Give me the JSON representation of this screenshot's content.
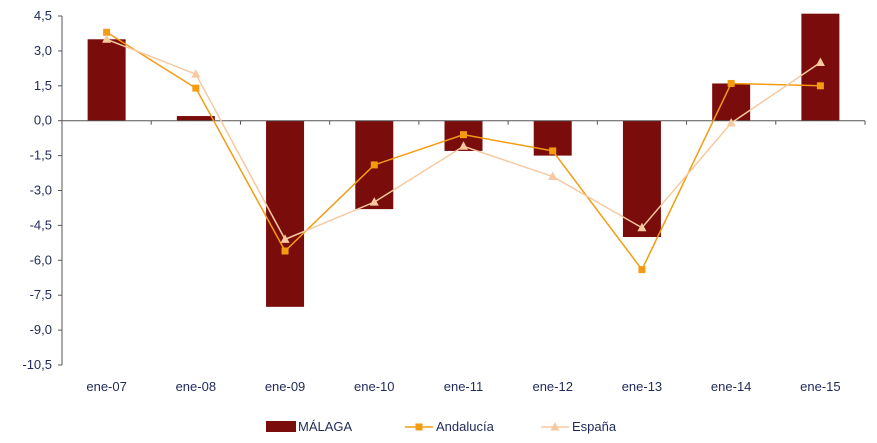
{
  "chart_data": {
    "type": "bar",
    "categories": [
      "ene-07",
      "ene-08",
      "ene-09",
      "ene-10",
      "ene-11",
      "ene-12",
      "ene-13",
      "ene-14",
      "ene-15"
    ],
    "yticks": [
      "4,5",
      "3,0",
      "1,5",
      "0,0",
      "-1,5",
      "-3,0",
      "-4,5",
      "-6,0",
      "-7,5",
      "-9,0",
      "-10,5"
    ],
    "ytick_values": [
      4.5,
      3.0,
      1.5,
      0.0,
      -1.5,
      -3.0,
      -4.5,
      -6.0,
      -7.5,
      -9.0,
      -10.5
    ],
    "ylim": [
      -10.5,
      4.5
    ],
    "grid": false,
    "legend_position": "bottom",
    "series": [
      {
        "name": "MÁLAGA",
        "kind": "bar",
        "color": "#7b0c0c",
        "values": [
          3.5,
          0.2,
          -8.0,
          -3.8,
          -1.3,
          -1.5,
          -5.0,
          1.6,
          4.6
        ]
      },
      {
        "name": "Andalucía",
        "kind": "line",
        "marker": "square",
        "color": "#f39c12",
        "values": [
          3.8,
          1.4,
          -5.6,
          -1.9,
          -0.6,
          -1.3,
          -6.4,
          1.6,
          1.5
        ]
      },
      {
        "name": "España",
        "kind": "line",
        "marker": "triangle",
        "color": "#f7c9a0",
        "values": [
          3.5,
          2.0,
          -5.1,
          -3.5,
          -1.1,
          -2.4,
          -4.6,
          -0.1,
          2.5
        ]
      }
    ]
  }
}
